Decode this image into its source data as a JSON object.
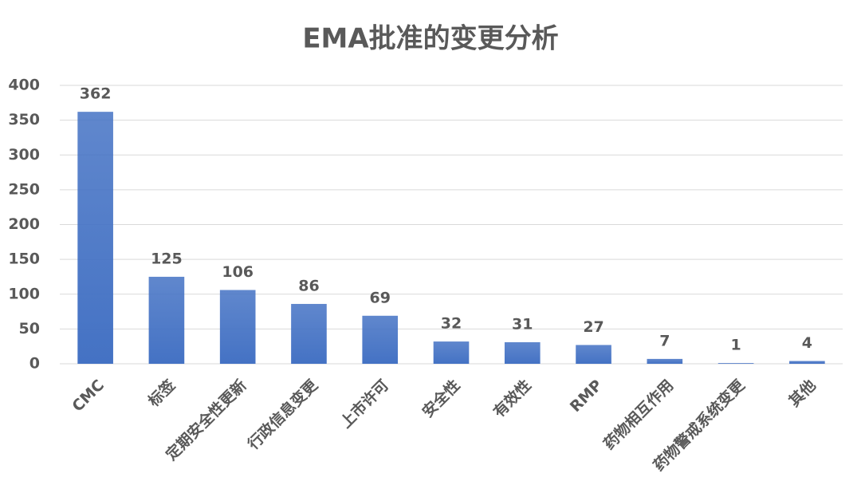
{
  "chart_data": {
    "type": "bar",
    "title": "EMA批准的变更分析",
    "categories": [
      "CMC",
      "标签",
      "定期安全性更新",
      "行政信息变更",
      "上市许可",
      "安全性",
      "有效性",
      "RMP",
      "药物相互作用",
      "药物警戒系统变更",
      "其他"
    ],
    "values": [
      362,
      125,
      106,
      86,
      69,
      32,
      31,
      27,
      7,
      1,
      4
    ],
    "color": "#4472c4",
    "ylim": [
      0,
      400
    ],
    "yticks": [
      0,
      50,
      100,
      150,
      200,
      250,
      300,
      350,
      400
    ],
    "grid": true
  }
}
